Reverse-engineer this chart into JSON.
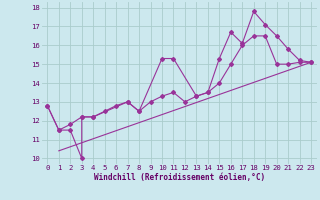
{
  "xlabel": "Windchill (Refroidissement éolien,°C)",
  "bg_color": "#cce8ee",
  "grid_color": "#aacccc",
  "line_color": "#993399",
  "xlim": [
    -0.5,
    23.5
  ],
  "ylim": [
    9.7,
    18.3
  ],
  "yticks": [
    10,
    11,
    12,
    13,
    14,
    15,
    16,
    17,
    18
  ],
  "xticks": [
    0,
    1,
    2,
    3,
    4,
    5,
    6,
    7,
    8,
    9,
    10,
    11,
    12,
    13,
    14,
    15,
    16,
    17,
    18,
    19,
    20,
    21,
    22,
    23
  ],
  "series1_x": [
    0,
    1,
    2,
    3,
    3,
    4,
    7,
    8,
    10,
    11,
    13,
    14,
    15,
    16,
    17,
    18,
    19,
    20,
    21,
    22,
    23
  ],
  "series1_y": [
    12.8,
    11.5,
    11.5,
    10.0,
    12.2,
    12.2,
    13.0,
    12.5,
    15.3,
    15.3,
    13.3,
    13.5,
    15.3,
    16.7,
    16.1,
    17.8,
    17.1,
    16.5,
    15.8,
    15.2,
    15.1
  ],
  "series2_x": [
    0,
    1,
    2,
    3,
    4,
    5,
    6,
    7,
    8,
    9,
    10,
    11,
    12,
    13,
    14,
    15,
    16,
    17,
    18,
    19,
    20,
    21,
    22,
    23
  ],
  "series2_y": [
    12.8,
    11.5,
    11.8,
    12.2,
    12.2,
    12.5,
    12.8,
    13.0,
    12.5,
    13.0,
    13.3,
    13.5,
    13.0,
    13.3,
    13.5,
    14.0,
    15.0,
    16.0,
    16.5,
    16.5,
    15.0,
    15.0,
    15.1,
    15.1
  ],
  "series3_x": [
    1,
    23
  ],
  "series3_y": [
    10.4,
    15.1
  ]
}
